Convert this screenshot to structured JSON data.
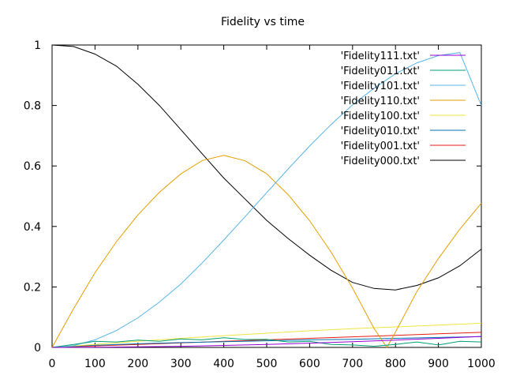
{
  "chart_data": {
    "type": "line",
    "title": "Fidelity vs time",
    "xlabel": "",
    "ylabel": "",
    "xlim": [
      0,
      1000
    ],
    "ylim": [
      0,
      1
    ],
    "x_ticks": [
      0,
      100,
      200,
      300,
      400,
      500,
      600,
      700,
      800,
      900,
      1000
    ],
    "y_ticks": [
      0,
      0.2,
      0.4,
      0.6,
      0.8,
      1
    ],
    "x_tick_labels": [
      "0",
      "100",
      "200",
      "300",
      "400",
      "500",
      "600",
      "700",
      "800",
      "900",
      "1000"
    ],
    "y_tick_labels": [
      "0",
      "0.2",
      "0.4",
      "0.6",
      "0.8",
      "1"
    ],
    "grid": false,
    "legend_position": "top-right",
    "series": [
      {
        "name": "'Fidelity111.txt'",
        "color": "#9400d3",
        "x": [
          0,
          100,
          200,
          300,
          400,
          500,
          600,
          700,
          800,
          900,
          1000
        ],
        "y": [
          0,
          0.0004,
          0.0017,
          0.0037,
          0.0065,
          0.01,
          0.0141,
          0.0189,
          0.0242,
          0.03,
          0.0362
        ]
      },
      {
        "name": "'Fidelity011.txt'",
        "color": "#009e73",
        "x": [
          0,
          50,
          100,
          150,
          200,
          250,
          300,
          350,
          400,
          450,
          500,
          550,
          600,
          650,
          700,
          750,
          800,
          850,
          900,
          950,
          1000
        ],
        "y": [
          0,
          0.01,
          0.02,
          0.018,
          0.024,
          0.02,
          0.028,
          0.025,
          0.032,
          0.026,
          0.027,
          0.018,
          0.02,
          0.01,
          0.008,
          0.004,
          0.01,
          0.018,
          0.008,
          0.02,
          0.018
        ]
      },
      {
        "name": "'Fidelity101.txt'",
        "color": "#56b4e9",
        "x": [
          0,
          50,
          100,
          150,
          200,
          250,
          300,
          350,
          400,
          450,
          500,
          550,
          600,
          650,
          700,
          750,
          800,
          850,
          900,
          950,
          1000
        ],
        "y": [
          0,
          0.006,
          0.025,
          0.056,
          0.098,
          0.15,
          0.21,
          0.28,
          0.355,
          0.433,
          0.512,
          0.59,
          0.666,
          0.737,
          0.802,
          0.857,
          0.905,
          0.941,
          0.965,
          0.975,
          0.8
        ]
      },
      {
        "name": "'Fidelity110.txt'",
        "color": "#e69f00",
        "x": [
          0,
          50,
          100,
          150,
          200,
          250,
          300,
          350,
          400,
          450,
          500,
          550,
          600,
          650,
          700,
          750,
          780,
          800,
          850,
          900,
          950,
          1000
        ],
        "y": [
          0,
          0.128,
          0.247,
          0.35,
          0.438,
          0.513,
          0.574,
          0.618,
          0.635,
          0.617,
          0.574,
          0.505,
          0.419,
          0.315,
          0.196,
          0.063,
          0.0,
          0.051,
          0.185,
          0.294,
          0.391,
          0.477
        ]
      },
      {
        "name": "'Fidelity100.txt'",
        "color": "#f0e442",
        "x": [
          0,
          100,
          200,
          300,
          400,
          500,
          600,
          700,
          800,
          900,
          1000
        ],
        "y": [
          0,
          0.01,
          0.02,
          0.03,
          0.039,
          0.047,
          0.055,
          0.062,
          0.068,
          0.074,
          0.08
        ]
      },
      {
        "name": "'Fidelity010.txt'",
        "color": "#0072b2",
        "x": [
          0,
          100,
          200,
          300,
          400,
          500,
          600,
          700,
          800,
          900,
          1000
        ],
        "y": [
          0,
          0.007,
          0.012,
          0.016,
          0.019,
          0.022,
          0.025,
          0.027,
          0.03,
          0.033,
          0.036
        ]
      },
      {
        "name": "'Fidelity001.txt'",
        "color": "#e51e10",
        "x": [
          0,
          100,
          200,
          300,
          400,
          500,
          600,
          700,
          800,
          900,
          1000
        ],
        "y": [
          0,
          0.005,
          0.01,
          0.015,
          0.02,
          0.025,
          0.03,
          0.035,
          0.04,
          0.045,
          0.05
        ]
      },
      {
        "name": "'Fidelity000.txt'",
        "color": "#000000",
        "x": [
          0,
          50,
          100,
          150,
          200,
          250,
          300,
          350,
          400,
          450,
          500,
          550,
          600,
          650,
          700,
          750,
          800,
          850,
          900,
          950,
          1000
        ],
        "y": [
          1.0,
          0.995,
          0.97,
          0.93,
          0.87,
          0.8,
          0.72,
          0.64,
          0.56,
          0.49,
          0.42,
          0.36,
          0.305,
          0.255,
          0.215,
          0.195,
          0.19,
          0.205,
          0.23,
          0.27,
          0.325
        ]
      }
    ]
  }
}
